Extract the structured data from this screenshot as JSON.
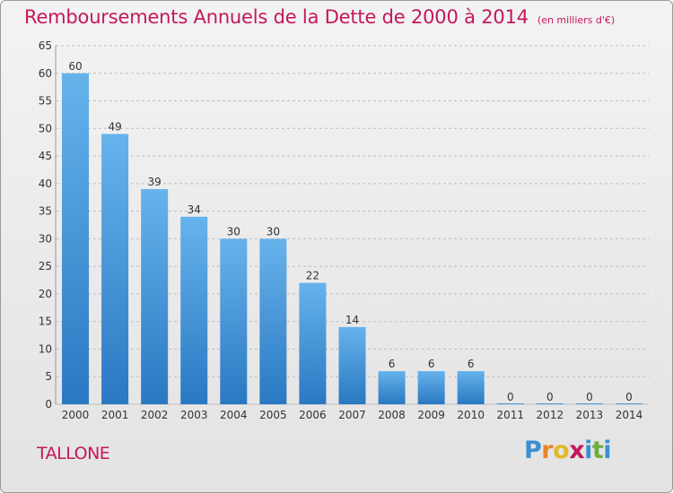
{
  "chart_data": {
    "type": "bar",
    "title": "Remboursements Annuels de la Dette de 2000 à 2014",
    "subtitle": "(en milliers d'€)",
    "categories": [
      "2000",
      "2001",
      "2002",
      "2003",
      "2004",
      "2005",
      "2006",
      "2007",
      "2008",
      "2009",
      "2010",
      "2011",
      "2012",
      "2013",
      "2014"
    ],
    "values": [
      60,
      49,
      39,
      34,
      30,
      30,
      22,
      14,
      6,
      6,
      6,
      0,
      0,
      0,
      0
    ],
    "xlabel": "",
    "ylabel": "",
    "ylim": [
      0,
      65
    ],
    "yticks": [
      0,
      5,
      10,
      15,
      20,
      25,
      30,
      35,
      40,
      45,
      50,
      55,
      60,
      65
    ],
    "grid": true,
    "bar_color": "#3f8fd6",
    "bar_color_light": "#66b3ec",
    "bar_color_dark": "#2a78c2"
  },
  "commune": "TALLONE",
  "brand": {
    "letters": [
      "P",
      "r",
      "o",
      "x",
      "i",
      "t",
      "i"
    ],
    "colors": [
      "#3b8fd1",
      "#e8852a",
      "#e0b82a",
      "#c4175c",
      "#3b8fd1",
      "#6cae3e",
      "#3b8fd1"
    ]
  },
  "colors": {
    "title": "#c4175c",
    "grid": "#bdbdbd",
    "axis_text": "#333333"
  }
}
